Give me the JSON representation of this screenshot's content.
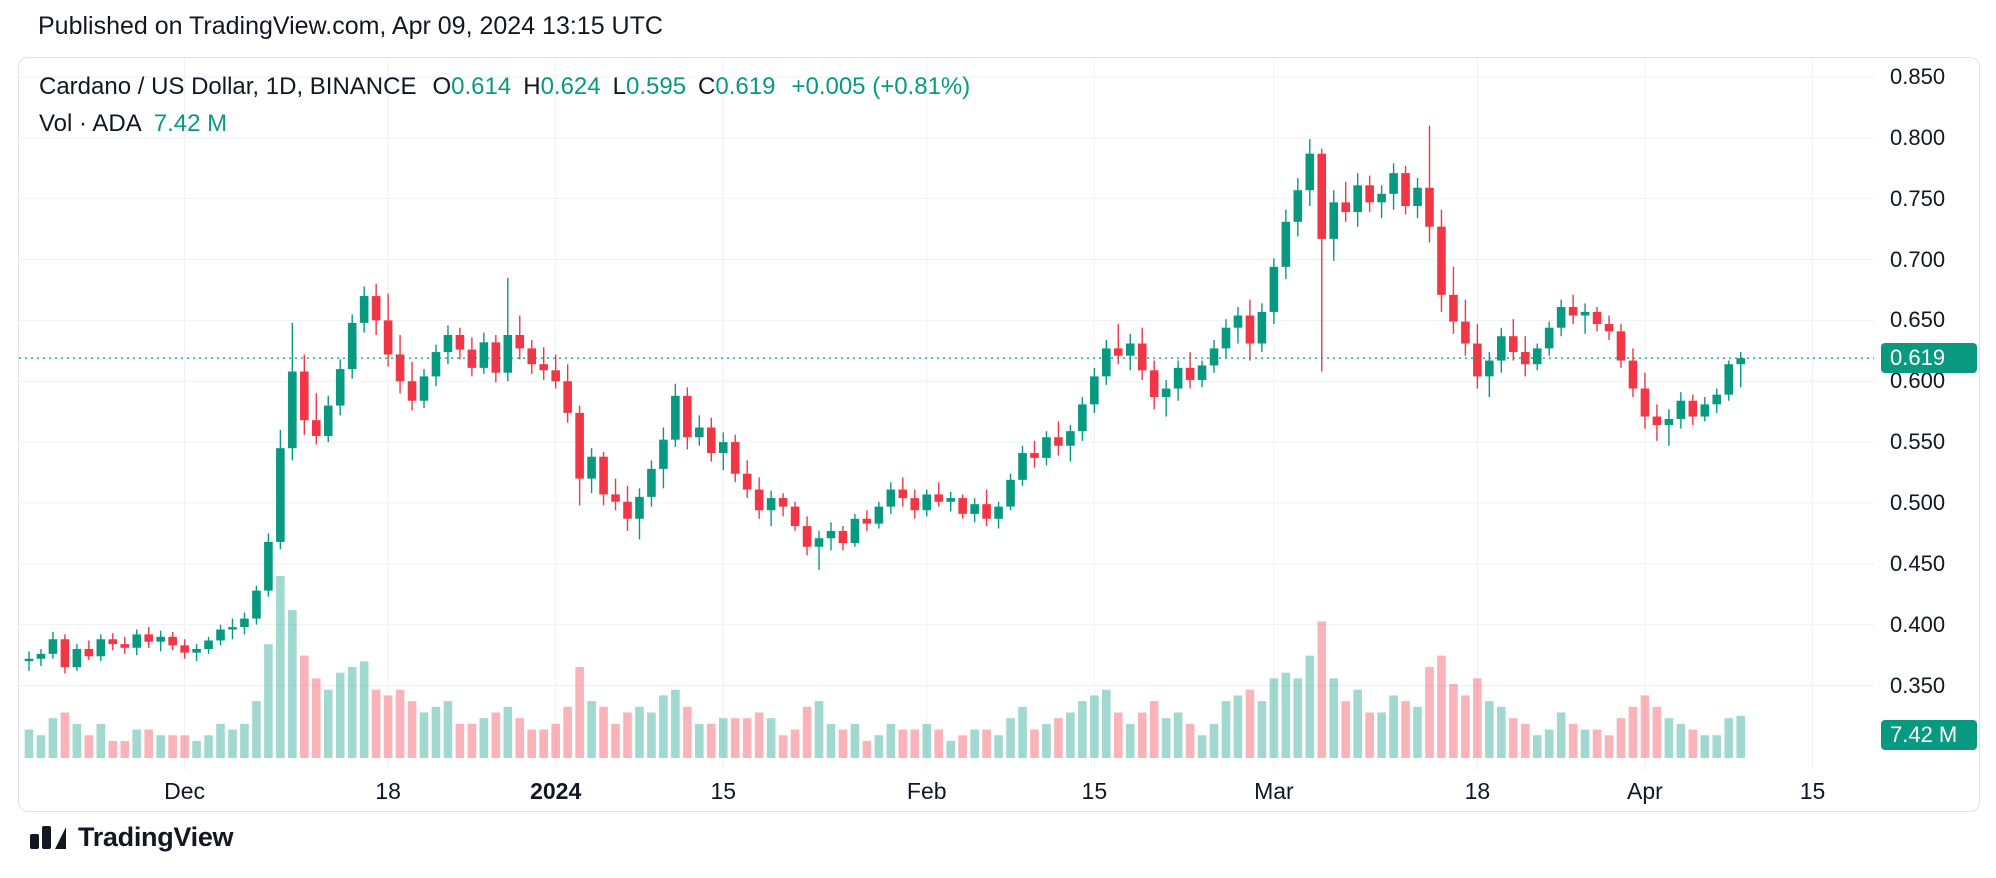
{
  "header": {
    "published_line": "Published on TradingView.com, Apr 09, 2024 13:15 UTC"
  },
  "legend": {
    "symbol_title": "Cardano / US Dollar, 1D, BINANCE",
    "ohlc": [
      {
        "label": "O",
        "value": "0.614"
      },
      {
        "label": "H",
        "value": "0.624"
      },
      {
        "label": "L",
        "value": "0.595"
      },
      {
        "label": "C",
        "value": "0.619"
      }
    ],
    "change": "+0.005 (+0.81%)",
    "vol_label": "Vol · ADA",
    "vol_value": "7.42 M"
  },
  "footer": {
    "brand": "TradingView",
    "logo_icon": "tradingview-logo"
  },
  "colors": {
    "up": "#089981",
    "down": "#f23645",
    "up_vol": "rgba(8,153,129,0.38)",
    "down_vol": "rgba(242,54,69,0.38)",
    "grid": "#eff1f5",
    "text": "#131722",
    "badge_bg": "#089981",
    "badge_text": "#ffffff"
  },
  "chart_data": {
    "type": "candlestick_with_volume",
    "title": "Cardano / US Dollar, 1D, BINANCE",
    "last_price_label": "0.619",
    "last_volume_label": "7.42 M",
    "y_axis_range": [
      0.35,
      0.85
    ],
    "y_ticks": [
      "0.850",
      "0.800",
      "0.750",
      "0.700",
      "0.650",
      "0.600",
      "0.550",
      "0.500",
      "0.450",
      "0.400",
      "0.350"
    ],
    "x_ticks": [
      {
        "label": "Dec",
        "i": 13
      },
      {
        "label": "18",
        "i": 30
      },
      {
        "label": "2024",
        "i": 44,
        "bold": true
      },
      {
        "label": "15",
        "i": 58
      },
      {
        "label": "Feb",
        "i": 75
      },
      {
        "label": "15",
        "i": 89
      },
      {
        "label": "Mar",
        "i": 104
      },
      {
        "label": "18",
        "i": 121
      },
      {
        "label": "Apr",
        "i": 135
      },
      {
        "label": "15",
        "i": 149
      }
    ],
    "candles_format": [
      "open",
      "high",
      "low",
      "close",
      "volume_millions"
    ],
    "candles": [
      [
        0.37,
        0.378,
        0.362,
        0.372,
        5
      ],
      [
        0.372,
        0.38,
        0.366,
        0.376,
        4
      ],
      [
        0.376,
        0.394,
        0.372,
        0.388,
        7
      ],
      [
        0.388,
        0.392,
        0.36,
        0.365,
        8
      ],
      [
        0.365,
        0.384,
        0.362,
        0.38,
        6
      ],
      [
        0.38,
        0.387,
        0.371,
        0.374,
        4
      ],
      [
        0.374,
        0.392,
        0.37,
        0.388,
        6
      ],
      [
        0.388,
        0.393,
        0.379,
        0.384,
        3
      ],
      [
        0.384,
        0.39,
        0.376,
        0.381,
        3
      ],
      [
        0.381,
        0.396,
        0.375,
        0.392,
        5
      ],
      [
        0.392,
        0.398,
        0.381,
        0.386,
        5
      ],
      [
        0.386,
        0.395,
        0.378,
        0.39,
        4
      ],
      [
        0.39,
        0.394,
        0.379,
        0.383,
        4
      ],
      [
        0.383,
        0.388,
        0.372,
        0.377,
        4
      ],
      [
        0.377,
        0.384,
        0.37,
        0.38,
        3
      ],
      [
        0.38,
        0.39,
        0.376,
        0.387,
        4
      ],
      [
        0.387,
        0.4,
        0.383,
        0.396,
        6
      ],
      [
        0.396,
        0.405,
        0.388,
        0.398,
        5
      ],
      [
        0.398,
        0.41,
        0.392,
        0.405,
        6
      ],
      [
        0.405,
        0.432,
        0.4,
        0.428,
        10
      ],
      [
        0.428,
        0.475,
        0.423,
        0.468,
        20
      ],
      [
        0.468,
        0.56,
        0.462,
        0.545,
        32
      ],
      [
        0.545,
        0.648,
        0.535,
        0.608,
        26
      ],
      [
        0.608,
        0.622,
        0.556,
        0.568,
        18
      ],
      [
        0.568,
        0.59,
        0.548,
        0.555,
        14
      ],
      [
        0.555,
        0.588,
        0.55,
        0.58,
        12
      ],
      [
        0.58,
        0.618,
        0.572,
        0.61,
        15
      ],
      [
        0.61,
        0.655,
        0.602,
        0.648,
        16
      ],
      [
        0.648,
        0.678,
        0.64,
        0.67,
        17
      ],
      [
        0.67,
        0.68,
        0.638,
        0.65,
        12
      ],
      [
        0.65,
        0.672,
        0.612,
        0.622,
        11
      ],
      [
        0.622,
        0.638,
        0.59,
        0.6,
        12
      ],
      [
        0.6,
        0.616,
        0.576,
        0.584,
        10
      ],
      [
        0.584,
        0.61,
        0.578,
        0.604,
        8
      ],
      [
        0.604,
        0.63,
        0.596,
        0.624,
        9
      ],
      [
        0.624,
        0.646,
        0.614,
        0.638,
        10
      ],
      [
        0.638,
        0.644,
        0.618,
        0.626,
        6
      ],
      [
        0.626,
        0.636,
        0.604,
        0.611,
        6
      ],
      [
        0.611,
        0.64,
        0.606,
        0.632,
        7
      ],
      [
        0.632,
        0.638,
        0.599,
        0.607,
        8
      ],
      [
        0.607,
        0.685,
        0.6,
        0.638,
        9
      ],
      [
        0.638,
        0.654,
        0.618,
        0.627,
        7
      ],
      [
        0.627,
        0.634,
        0.606,
        0.614,
        5
      ],
      [
        0.614,
        0.628,
        0.601,
        0.609,
        5
      ],
      [
        0.609,
        0.622,
        0.594,
        0.6,
        6
      ],
      [
        0.6,
        0.614,
        0.566,
        0.574,
        9
      ],
      [
        0.574,
        0.58,
        0.498,
        0.52,
        16
      ],
      [
        0.52,
        0.545,
        0.508,
        0.538,
        10
      ],
      [
        0.538,
        0.542,
        0.498,
        0.507,
        9
      ],
      [
        0.507,
        0.52,
        0.494,
        0.501,
        6
      ],
      [
        0.501,
        0.514,
        0.477,
        0.487,
        8
      ],
      [
        0.487,
        0.512,
        0.47,
        0.505,
        9
      ],
      [
        0.505,
        0.535,
        0.497,
        0.528,
        8
      ],
      [
        0.528,
        0.562,
        0.512,
        0.552,
        11
      ],
      [
        0.552,
        0.598,
        0.546,
        0.588,
        12
      ],
      [
        0.588,
        0.595,
        0.544,
        0.554,
        9
      ],
      [
        0.554,
        0.572,
        0.547,
        0.562,
        6
      ],
      [
        0.562,
        0.57,
        0.534,
        0.541,
        6
      ],
      [
        0.541,
        0.558,
        0.527,
        0.55,
        7
      ],
      [
        0.55,
        0.556,
        0.517,
        0.524,
        7
      ],
      [
        0.524,
        0.535,
        0.504,
        0.511,
        7
      ],
      [
        0.511,
        0.521,
        0.487,
        0.494,
        8
      ],
      [
        0.494,
        0.51,
        0.481,
        0.504,
        7
      ],
      [
        0.504,
        0.508,
        0.489,
        0.497,
        4
      ],
      [
        0.497,
        0.501,
        0.477,
        0.481,
        5
      ],
      [
        0.481,
        0.489,
        0.457,
        0.464,
        9
      ],
      [
        0.464,
        0.477,
        0.445,
        0.471,
        10
      ],
      [
        0.471,
        0.484,
        0.461,
        0.477,
        6
      ],
      [
        0.477,
        0.481,
        0.461,
        0.467,
        5
      ],
      [
        0.467,
        0.491,
        0.464,
        0.487,
        6
      ],
      [
        0.487,
        0.494,
        0.477,
        0.483,
        3
      ],
      [
        0.483,
        0.501,
        0.479,
        0.497,
        4
      ],
      [
        0.497,
        0.517,
        0.491,
        0.511,
        6
      ],
      [
        0.511,
        0.521,
        0.497,
        0.504,
        5
      ],
      [
        0.504,
        0.511,
        0.487,
        0.494,
        5
      ],
      [
        0.494,
        0.511,
        0.489,
        0.507,
        6
      ],
      [
        0.507,
        0.517,
        0.497,
        0.501,
        5
      ],
      [
        0.501,
        0.509,
        0.493,
        0.504,
        3
      ],
      [
        0.504,
        0.507,
        0.487,
        0.491,
        4
      ],
      [
        0.491,
        0.504,
        0.484,
        0.499,
        5
      ],
      [
        0.499,
        0.511,
        0.481,
        0.487,
        5
      ],
      [
        0.487,
        0.501,
        0.479,
        0.497,
        4
      ],
      [
        0.497,
        0.524,
        0.494,
        0.519,
        7
      ],
      [
        0.519,
        0.547,
        0.514,
        0.541,
        9
      ],
      [
        0.541,
        0.551,
        0.529,
        0.537,
        5
      ],
      [
        0.537,
        0.559,
        0.531,
        0.554,
        6
      ],
      [
        0.554,
        0.567,
        0.539,
        0.547,
        7
      ],
      [
        0.547,
        0.564,
        0.534,
        0.559,
        8
      ],
      [
        0.559,
        0.587,
        0.551,
        0.581,
        10
      ],
      [
        0.581,
        0.611,
        0.574,
        0.604,
        11
      ],
      [
        0.604,
        0.634,
        0.597,
        0.627,
        12
      ],
      [
        0.627,
        0.647,
        0.614,
        0.621,
        8
      ],
      [
        0.621,
        0.639,
        0.609,
        0.631,
        6
      ],
      [
        0.631,
        0.644,
        0.601,
        0.609,
        8
      ],
      [
        0.609,
        0.617,
        0.577,
        0.587,
        10
      ],
      [
        0.587,
        0.601,
        0.571,
        0.594,
        7
      ],
      [
        0.594,
        0.617,
        0.584,
        0.611,
        8
      ],
      [
        0.611,
        0.624,
        0.594,
        0.601,
        6
      ],
      [
        0.601,
        0.617,
        0.595,
        0.613,
        4
      ],
      [
        0.613,
        0.634,
        0.607,
        0.627,
        6
      ],
      [
        0.627,
        0.651,
        0.619,
        0.644,
        10
      ],
      [
        0.644,
        0.661,
        0.631,
        0.654,
        11
      ],
      [
        0.654,
        0.667,
        0.617,
        0.631,
        12
      ],
      [
        0.631,
        0.664,
        0.624,
        0.657,
        10
      ],
      [
        0.657,
        0.701,
        0.647,
        0.694,
        14
      ],
      [
        0.694,
        0.741,
        0.684,
        0.731,
        15
      ],
      [
        0.731,
        0.767,
        0.719,
        0.757,
        14
      ],
      [
        0.757,
        0.799,
        0.744,
        0.787,
        18
      ],
      [
        0.787,
        0.791,
        0.608,
        0.717,
        24
      ],
      [
        0.717,
        0.757,
        0.699,
        0.747,
        14
      ],
      [
        0.747,
        0.764,
        0.731,
        0.739,
        10
      ],
      [
        0.739,
        0.771,
        0.727,
        0.761,
        12
      ],
      [
        0.761,
        0.769,
        0.739,
        0.747,
        8
      ],
      [
        0.747,
        0.761,
        0.734,
        0.754,
        8
      ],
      [
        0.754,
        0.779,
        0.741,
        0.771,
        11
      ],
      [
        0.771,
        0.777,
        0.737,
        0.744,
        10
      ],
      [
        0.744,
        0.767,
        0.734,
        0.759,
        9
      ],
      [
        0.759,
        0.81,
        0.714,
        0.727,
        16
      ],
      [
        0.727,
        0.741,
        0.657,
        0.671,
        18
      ],
      [
        0.671,
        0.694,
        0.639,
        0.649,
        13
      ],
      [
        0.649,
        0.667,
        0.621,
        0.631,
        11
      ],
      [
        0.631,
        0.647,
        0.594,
        0.604,
        14
      ],
      [
        0.604,
        0.624,
        0.587,
        0.617,
        10
      ],
      [
        0.617,
        0.644,
        0.607,
        0.637,
        9
      ],
      [
        0.637,
        0.651,
        0.617,
        0.624,
        7
      ],
      [
        0.624,
        0.637,
        0.604,
        0.614,
        6
      ],
      [
        0.614,
        0.631,
        0.609,
        0.627,
        4
      ],
      [
        0.627,
        0.649,
        0.621,
        0.644,
        5
      ],
      [
        0.644,
        0.667,
        0.637,
        0.661,
        8
      ],
      [
        0.661,
        0.671,
        0.647,
        0.654,
        6
      ],
      [
        0.654,
        0.664,
        0.639,
        0.657,
        5
      ],
      [
        0.657,
        0.661,
        0.641,
        0.647,
        5
      ],
      [
        0.647,
        0.654,
        0.634,
        0.641,
        4
      ],
      [
        0.641,
        0.647,
        0.611,
        0.617,
        7
      ],
      [
        0.617,
        0.627,
        0.587,
        0.594,
        9
      ],
      [
        0.594,
        0.607,
        0.561,
        0.571,
        11
      ],
      [
        0.571,
        0.581,
        0.551,
        0.564,
        9
      ],
      [
        0.564,
        0.577,
        0.547,
        0.569,
        7
      ],
      [
        0.569,
        0.591,
        0.561,
        0.584,
        6
      ],
      [
        0.584,
        0.589,
        0.564,
        0.571,
        5
      ],
      [
        0.571,
        0.587,
        0.567,
        0.581,
        4
      ],
      [
        0.581,
        0.594,
        0.574,
        0.589,
        4
      ],
      [
        0.589,
        0.617,
        0.584,
        0.614,
        7
      ],
      [
        0.614,
        0.624,
        0.595,
        0.619,
        7.42
      ]
    ]
  }
}
